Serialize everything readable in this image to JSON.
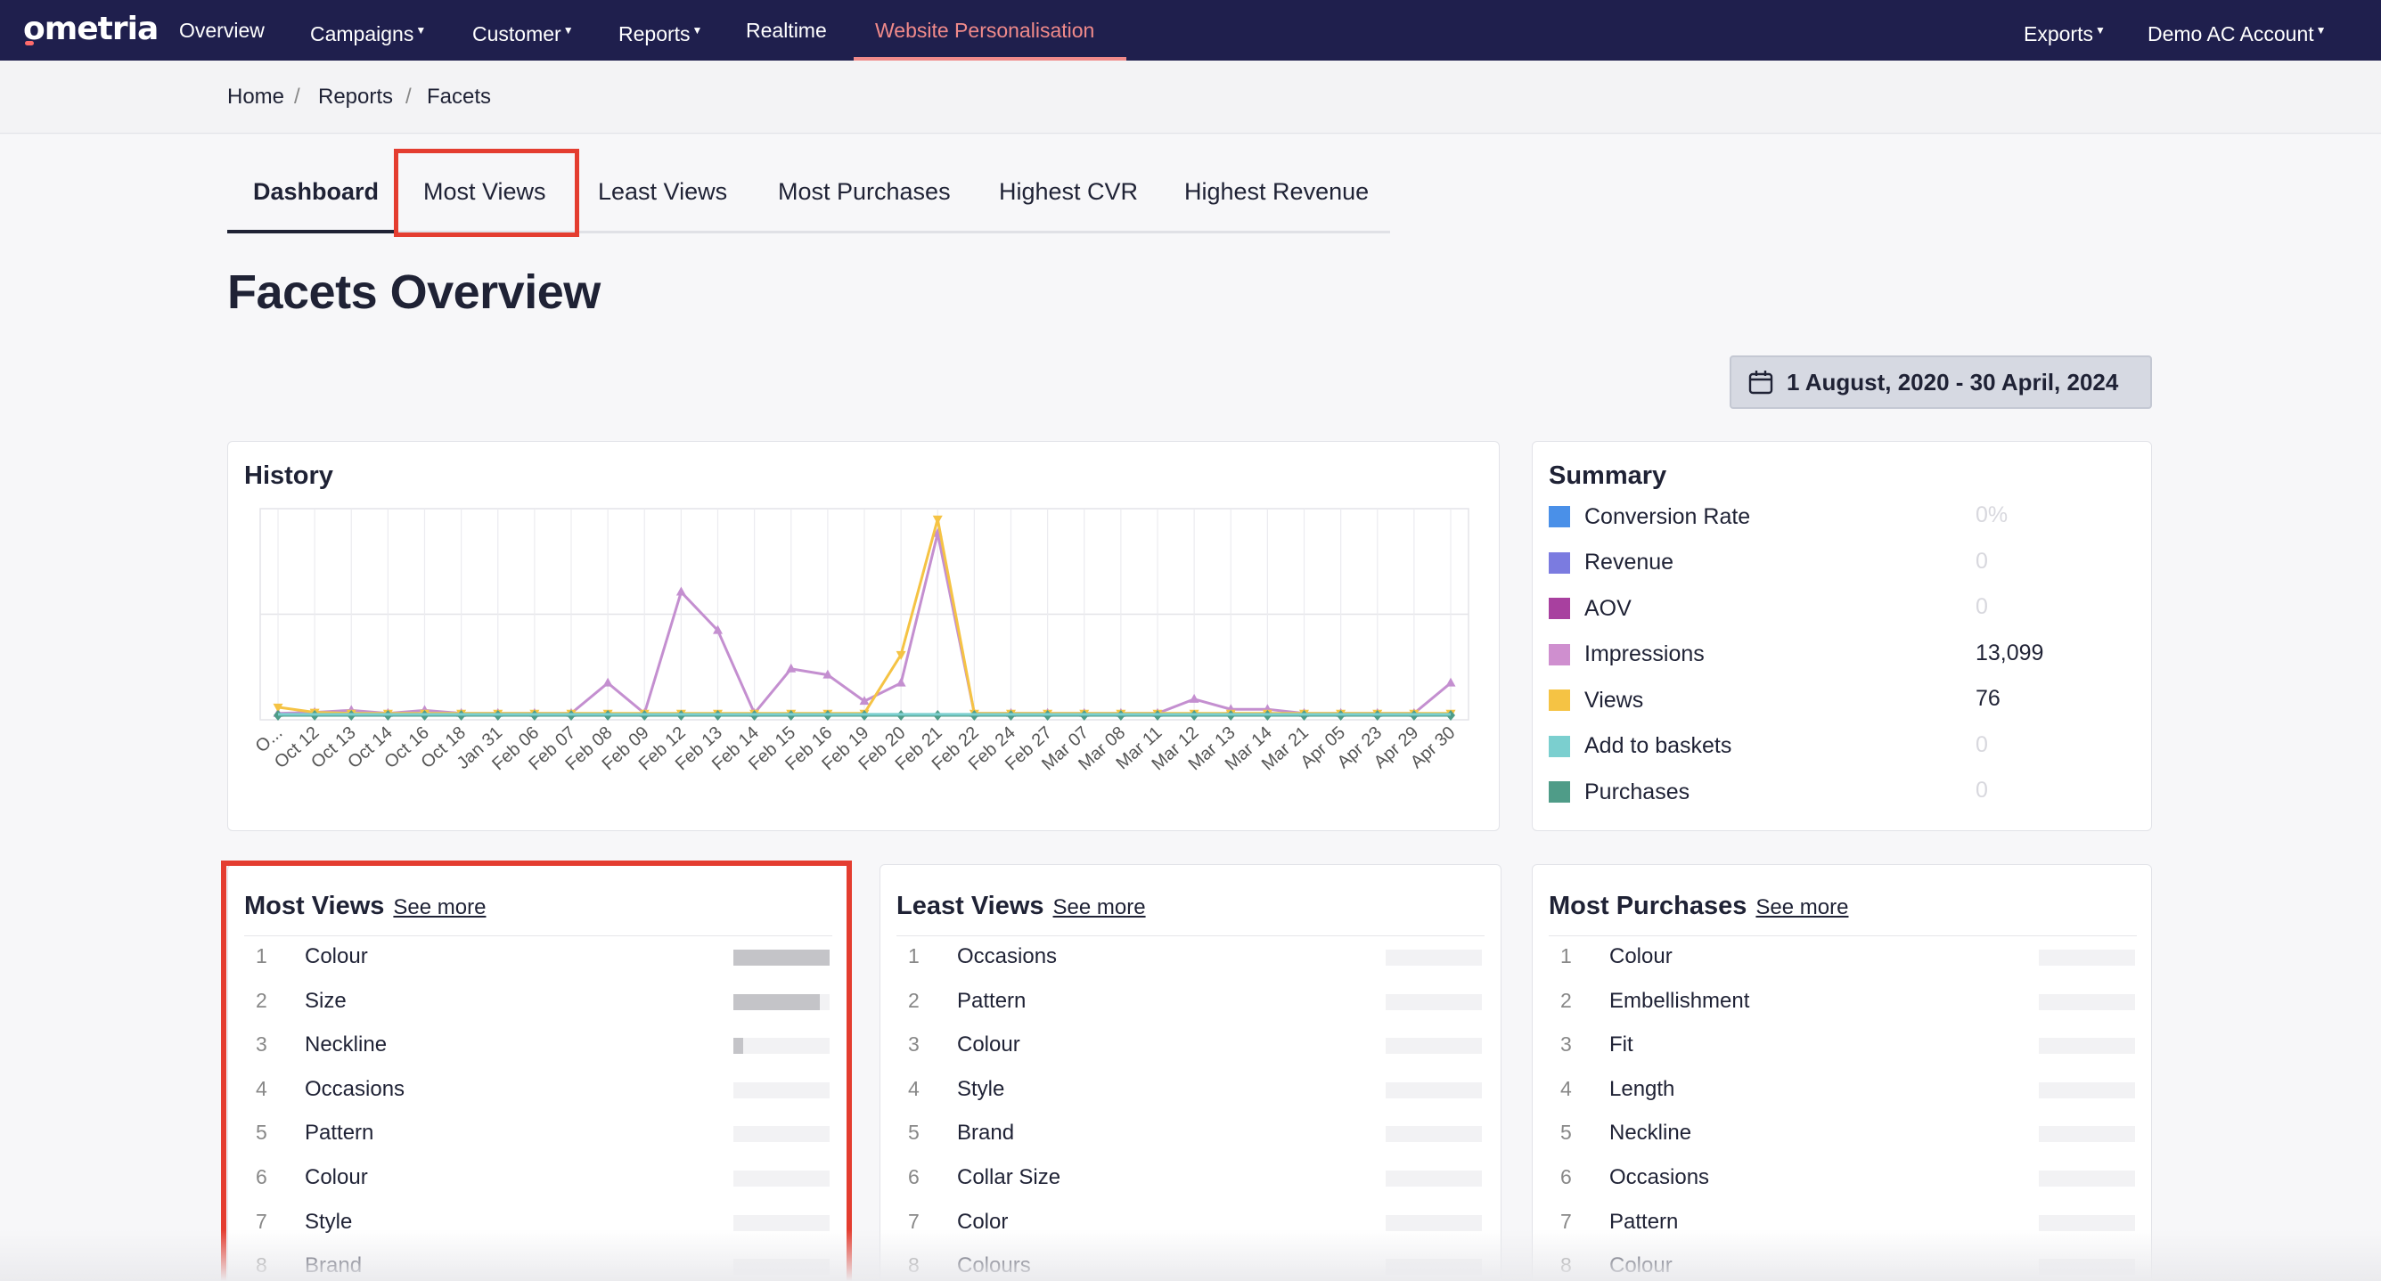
{
  "nav": {
    "logo": "ometria",
    "items": [
      {
        "label": "Overview",
        "caret": false
      },
      {
        "label": "Campaigns",
        "caret": true
      },
      {
        "label": "Customer",
        "caret": true
      },
      {
        "label": "Reports",
        "caret": true
      },
      {
        "label": "Realtime",
        "caret": false
      },
      {
        "label": "Website Personalisation",
        "caret": false,
        "active": true
      }
    ],
    "right": [
      {
        "label": "Exports",
        "caret": true
      },
      {
        "label": "Demo AC Account",
        "caret": true
      }
    ]
  },
  "breadcrumb": [
    "Home",
    "Reports",
    "Facets"
  ],
  "tabs": [
    "Dashboard",
    "Most Views",
    "Least Views",
    "Most Purchases",
    "Highest CVR",
    "Highest Revenue"
  ],
  "page_title": "Facets Overview",
  "date_range": "1 August, 2020 - 30 April, 2024",
  "history": {
    "title": "History",
    "chart_data": {
      "type": "line",
      "x": [
        "O...",
        "Oct 12",
        "Oct 13",
        "Oct 14",
        "Oct 16",
        "Oct 18",
        "Jan 31",
        "Feb 06",
        "Feb 07",
        "Feb 08",
        "Feb 09",
        "Feb 12",
        "Feb 13",
        "Feb 14",
        "Feb 15",
        "Feb 16",
        "Feb 19",
        "Feb 20",
        "Feb 21",
        "Feb 22",
        "Feb 24",
        "Feb 27",
        "Mar 07",
        "Mar 08",
        "Mar 11",
        "Mar 12",
        "Mar 13",
        "Mar 14",
        "Mar 21",
        "Apr 05",
        "Apr 23",
        "Apr 29",
        "Apr 30"
      ],
      "ylim": [
        0,
        1000
      ],
      "grid": true,
      "series": [
        {
          "color": "#c48fd0",
          "marker": "triangle-up",
          "values": [
            10,
            15,
            25,
            10,
            25,
            10,
            10,
            10,
            10,
            160,
            10,
            610,
            420,
            10,
            230,
            200,
            70,
            160,
            900,
            10,
            10,
            10,
            10,
            10,
            10,
            80,
            30,
            30,
            10,
            10,
            10,
            10,
            160
          ]
        },
        {
          "color": "#f5c344",
          "marker": "triangle-down",
          "values": [
            40,
            15,
            10,
            10,
            10,
            10,
            10,
            10,
            10,
            10,
            10,
            10,
            10,
            10,
            10,
            10,
            10,
            300,
            970,
            10,
            10,
            10,
            10,
            10,
            10,
            10,
            10,
            10,
            10,
            10,
            10,
            10,
            10
          ]
        },
        {
          "color": "#4f9c88",
          "marker": "diamond",
          "values": [
            0,
            0,
            0,
            0,
            0,
            0,
            0,
            0,
            0,
            0,
            0,
            0,
            0,
            0,
            0,
            0,
            0,
            0,
            0,
            0,
            0,
            0,
            0,
            0,
            0,
            0,
            0,
            0,
            0,
            0,
            0,
            0,
            0
          ]
        },
        {
          "color": "#7bcfcf",
          "marker": "none",
          "values": [
            5,
            5,
            5,
            5,
            5,
            5,
            5,
            5,
            5,
            5,
            5,
            5,
            5,
            5,
            5,
            5,
            5,
            5,
            5,
            5,
            5,
            5,
            5,
            5,
            5,
            5,
            5,
            5,
            5,
            5,
            5,
            5,
            5
          ]
        }
      ]
    }
  },
  "summary": {
    "title": "Summary",
    "rows": [
      {
        "label": "Conversion Rate",
        "color": "#4a90e8",
        "value": "0%",
        "muted": true
      },
      {
        "label": "Revenue",
        "color": "#7b7be0",
        "value": "0",
        "muted": true
      },
      {
        "label": "AOV",
        "color": "#a8409f",
        "value": "0",
        "muted": true
      },
      {
        "label": "Impressions",
        "color": "#cf8fcf",
        "value": "13,099",
        "muted": false
      },
      {
        "label": "Views",
        "color": "#f5c344",
        "value": "76",
        "muted": false
      },
      {
        "label": "Add to baskets",
        "color": "#7bcfcf",
        "value": "0",
        "muted": true
      },
      {
        "label": "Purchases",
        "color": "#4f9c88",
        "value": "0",
        "muted": true
      }
    ]
  },
  "lists": [
    {
      "title": "Most Views",
      "see_more": "See more",
      "items": [
        {
          "n": "1",
          "label": "Colour",
          "fill": 1.0
        },
        {
          "n": "2",
          "label": "Size",
          "fill": 0.9
        },
        {
          "n": "3",
          "label": "Neckline",
          "fill": 0.1
        },
        {
          "n": "4",
          "label": "Occasions",
          "fill": 0
        },
        {
          "n": "5",
          "label": "Pattern",
          "fill": 0
        },
        {
          "n": "6",
          "label": "Colour",
          "fill": 0
        },
        {
          "n": "7",
          "label": "Style",
          "fill": 0
        },
        {
          "n": "8",
          "label": "Brand",
          "fill": 0
        }
      ]
    },
    {
      "title": "Least Views",
      "see_more": "See more",
      "items": [
        {
          "n": "1",
          "label": "Occasions",
          "fill": 0
        },
        {
          "n": "2",
          "label": "Pattern",
          "fill": 0
        },
        {
          "n": "3",
          "label": "Colour",
          "fill": 0
        },
        {
          "n": "4",
          "label": "Style",
          "fill": 0
        },
        {
          "n": "5",
          "label": "Brand",
          "fill": 0
        },
        {
          "n": "6",
          "label": "Collar Size",
          "fill": 0
        },
        {
          "n": "7",
          "label": "Color",
          "fill": 0
        },
        {
          "n": "8",
          "label": "Colours",
          "fill": 0
        }
      ]
    },
    {
      "title": "Most Purchases",
      "see_more": "See more",
      "items": [
        {
          "n": "1",
          "label": "Colour",
          "fill": 0
        },
        {
          "n": "2",
          "label": "Embellishment",
          "fill": 0
        },
        {
          "n": "3",
          "label": "Fit",
          "fill": 0
        },
        {
          "n": "4",
          "label": "Length",
          "fill": 0
        },
        {
          "n": "5",
          "label": "Neckline",
          "fill": 0
        },
        {
          "n": "6",
          "label": "Occasions",
          "fill": 0
        },
        {
          "n": "7",
          "label": "Pattern",
          "fill": 0
        },
        {
          "n": "8",
          "label": "Colour",
          "fill": 0
        }
      ]
    }
  ]
}
